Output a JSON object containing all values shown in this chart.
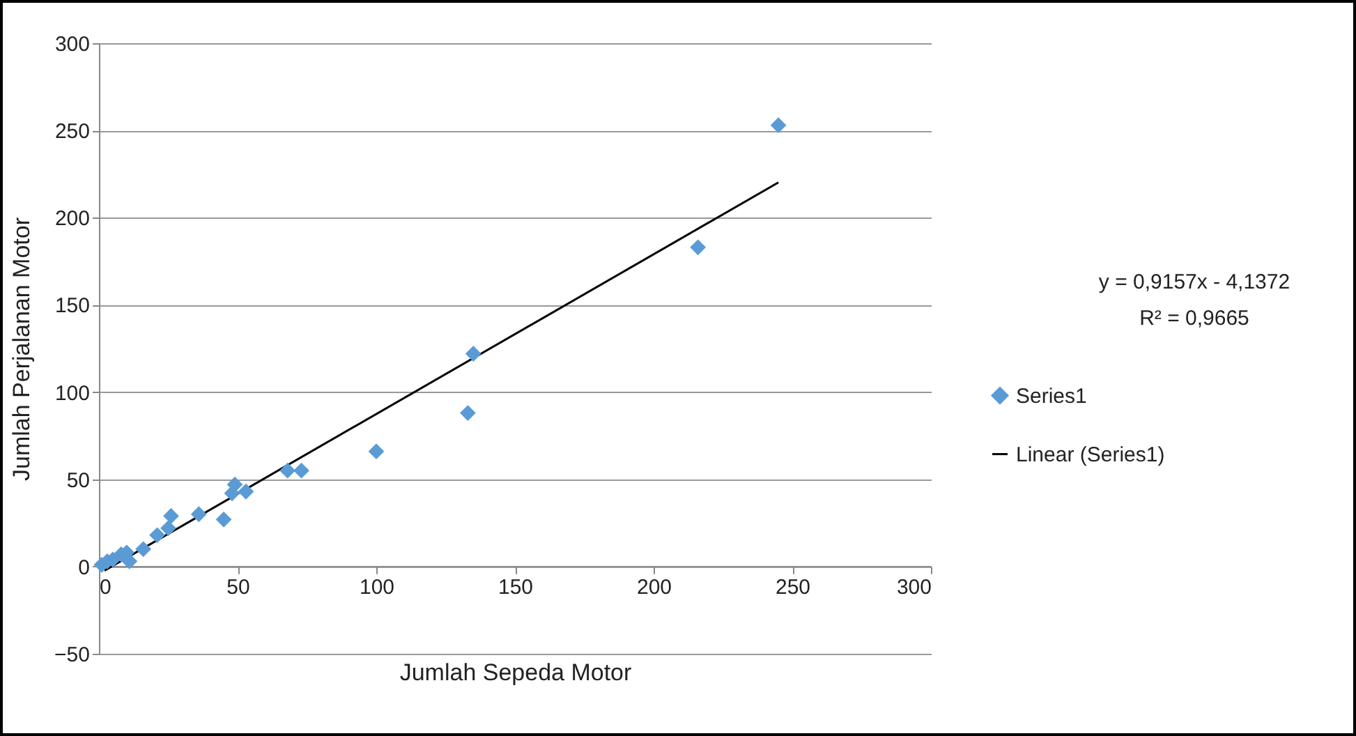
{
  "chart_data": {
    "type": "scatter",
    "xlabel": "Jumlah Sepeda Motor",
    "ylabel": "Jumlah Perjalanan Motor",
    "xlim": [
      0,
      300
    ],
    "xticks": [
      0,
      50,
      100,
      150,
      200,
      250,
      300
    ],
    "ylim": [
      -50,
      300
    ],
    "yticks": [
      -50,
      0,
      50,
      100,
      150,
      200,
      250,
      300
    ],
    "grid": "y",
    "legend": "right",
    "marker": "diamond",
    "annotations": [
      "y = 0,9157x - 4,1372",
      "R² = 0,9665"
    ],
    "series": [
      {
        "name": "Series1",
        "type": "scatter",
        "color": "#5b9bd5",
        "x": [
          1,
          3,
          5,
          8,
          10,
          11,
          16,
          21,
          25,
          26,
          36,
          45,
          48,
          49,
          53,
          68,
          73,
          100,
          133,
          135,
          216,
          245
        ],
        "values": [
          1,
          3,
          4,
          7,
          8,
          3,
          10,
          18,
          22,
          29,
          30,
          27,
          42,
          47,
          43,
          55,
          55,
          66,
          88,
          122,
          183,
          253
        ]
      },
      {
        "name": "Linear (Series1)",
        "type": "line",
        "color": "#000000",
        "line_style": "solid",
        "marker": "none",
        "x": [
          2,
          245
        ],
        "values": [
          -2.3,
          220.2
        ]
      }
    ]
  }
}
